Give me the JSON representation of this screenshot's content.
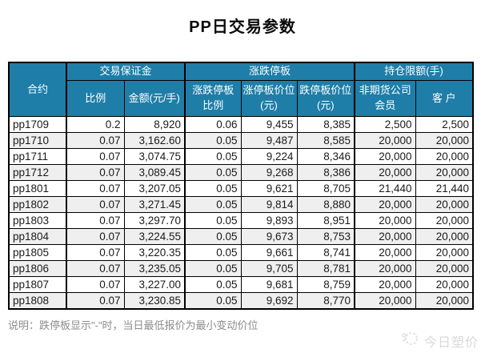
{
  "page": {
    "title": "PP日交易参数"
  },
  "colors": {
    "header_bg": "#1e7ea8",
    "header_text": "#ffffff",
    "row_alt_bg": "#efefef",
    "border": "#000000",
    "note_text": "#8c8c8c",
    "watermark_text": "#d9d9d9"
  },
  "table": {
    "groups": {
      "margin": "交易保证金",
      "price_limit": "涨跌停板",
      "position_limit": "持仓限额(手)"
    },
    "columns": [
      "合约",
      "比例",
      "金额(元/手)",
      "涨跌停板比例",
      "涨停板价位(元)",
      "跌停板价位(元)",
      "非期货公司会员",
      "客 户"
    ],
    "rows": [
      [
        "pp1709",
        "0.2",
        "8,920",
        "0.06",
        "9,455",
        "8,385",
        "2,500",
        "2,500"
      ],
      [
        "pp1710",
        "0.07",
        "3,162.60",
        "0.05",
        "9,487",
        "8,585",
        "20,000",
        "20,000"
      ],
      [
        "pp1711",
        "0.07",
        "3,074.75",
        "0.05",
        "9,224",
        "8,346",
        "20,000",
        "20,000"
      ],
      [
        "pp1712",
        "0.07",
        "3,089.45",
        "0.05",
        "9,268",
        "8,386",
        "20,000",
        "20,000"
      ],
      [
        "pp1801",
        "0.07",
        "3,207.05",
        "0.05",
        "9,621",
        "8,705",
        "21,440",
        "21,440"
      ],
      [
        "pp1802",
        "0.07",
        "3,271.45",
        "0.05",
        "9,814",
        "8,880",
        "20,000",
        "20,000"
      ],
      [
        "pp1803",
        "0.07",
        "3,297.70",
        "0.05",
        "9,893",
        "8,951",
        "20,000",
        "20,000"
      ],
      [
        "pp1804",
        "0.07",
        "3,224.55",
        "0.05",
        "9,673",
        "8,753",
        "20,000",
        "20,000"
      ],
      [
        "pp1805",
        "0.07",
        "3,220.35",
        "0.05",
        "9,661",
        "8,741",
        "20,000",
        "20,000"
      ],
      [
        "pp1806",
        "0.07",
        "3,235.05",
        "0.05",
        "9,705",
        "8,781",
        "20,000",
        "20,000"
      ],
      [
        "pp1807",
        "0.07",
        "3,227.00",
        "0.05",
        "9,681",
        "8,759",
        "20,000",
        "20,000"
      ],
      [
        "pp1808",
        "0.07",
        "3,230.85",
        "0.05",
        "9,692",
        "8,770",
        "20,000",
        "20,000"
      ]
    ]
  },
  "note": "说明：跌停板显示\"-\"时，当日最低报价为最小变动价位",
  "watermark": {
    "label": "今日塑价"
  }
}
